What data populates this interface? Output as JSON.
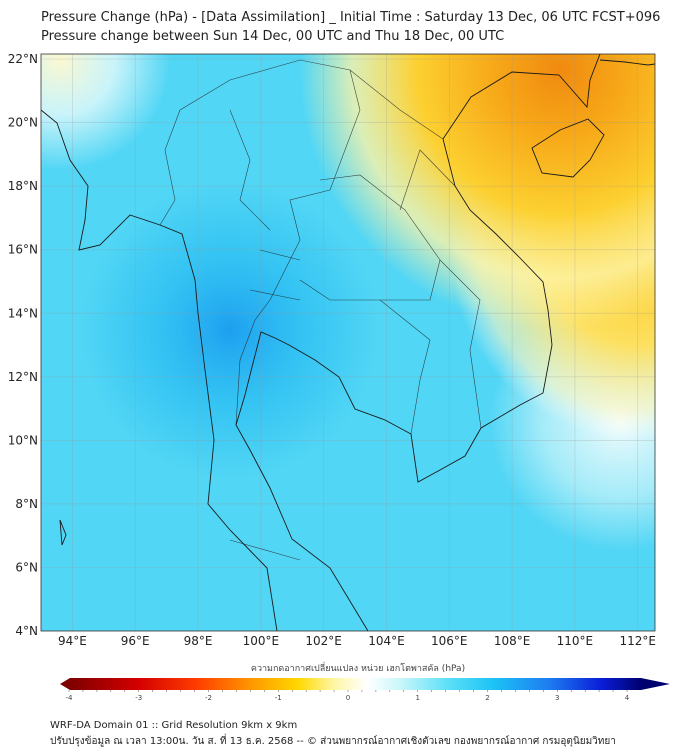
{
  "title": {
    "line1": "Pressure Change (hPa) - [Data Assimilation] _ Initial Time : Saturday 13 Dec, 06 UTC FCST+096",
    "line2": "Pressure change between Sun 14 Dec, 00 UTC and Thu 18 Dec, 00 UTC"
  },
  "map": {
    "lon_ticks": [
      94,
      96,
      98,
      100,
      102,
      104,
      106,
      108,
      110,
      112
    ],
    "lon_labels": [
      "94°E",
      "96°E",
      "98°E",
      "100°E",
      "102°E",
      "104°E",
      "106°E",
      "108°E",
      "110°E",
      "112°E"
    ],
    "lat_ticks": [
      22,
      20,
      18,
      16,
      14,
      12,
      10,
      8,
      6,
      4
    ],
    "lat_labels": [
      "22°N",
      "20°N",
      "18°N",
      "16°N",
      "14°N",
      "12°N",
      "10°N",
      "8°N",
      "6°N",
      "4°N"
    ],
    "lon_range": [
      93,
      112.55
    ],
    "lat_range": [
      4,
      22.16
    ]
  },
  "colorbar": {
    "label": "ความกดอากาศเปลี่ยนแปลง หน่วย เฮกโตพาสคัล (hPa)",
    "range": [
      -4,
      4
    ],
    "ticks": [
      "-4",
      "-3",
      "-2",
      "-1",
      "0",
      "1",
      "2",
      "3",
      "4"
    ],
    "colors": [
      "#7f0000",
      "#d40000",
      "#ff3b00",
      "#ff9a00",
      "#ffd800",
      "#fff5a0",
      "#ffffff",
      "#c8f6fb",
      "#5ee0f7",
      "#1cc4f5",
      "#1e7cf0",
      "#0a1ed8",
      "#00006e"
    ]
  },
  "footer": {
    "line1": "WRF-DA Domain 01 :: Grid Resolution 9km x 9km",
    "line2": "ปรับปรุงข้อมูล ณ เวลา 13:00น. วัน ส. ที่ 13 ธ.ค. 2568 -- © ส่วนพยากรณ์อากาศเชิงตัวเลข กองพยากรณ์อากาศ กรมอุตุนิยมวิทยา"
  }
}
